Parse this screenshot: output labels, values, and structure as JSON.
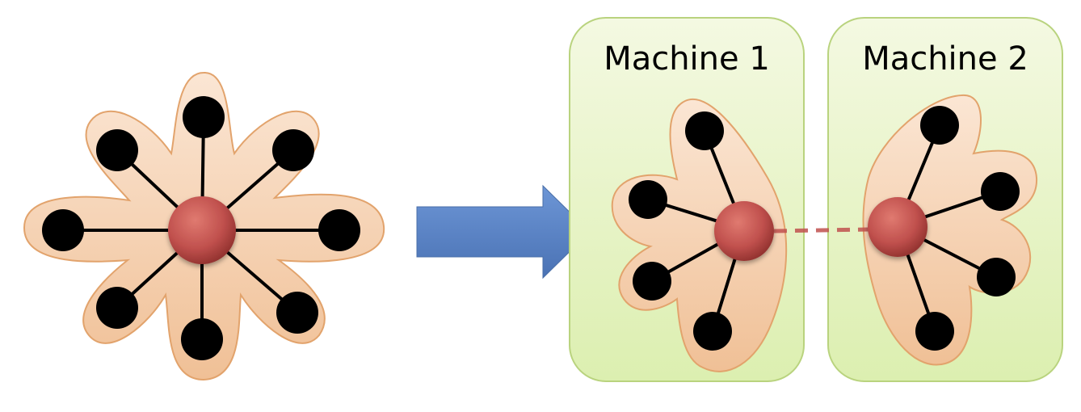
{
  "machines": [
    {
      "label": "Machine 1"
    },
    {
      "label": "Machine 2"
    }
  ],
  "colors": {
    "blob_fill_top": "#fbe3cf",
    "blob_fill_bottom": "#f1c29a",
    "blob_stroke": "#e0a06a",
    "machine_fill_top": "#f2f8dc",
    "machine_fill_bottom": "#dcefb3",
    "machine_stroke": "#b7d27c",
    "hub_fill": "#c0504d",
    "leaf_fill": "#000000",
    "arrow_fill": "#5b84c4",
    "cut_edge": "#c0504d"
  },
  "graph": {
    "original_leaf_count": 8,
    "machine1_leaf_count": 4,
    "machine2_leaf_count": 4,
    "cross_machine_edge": "dashed"
  }
}
